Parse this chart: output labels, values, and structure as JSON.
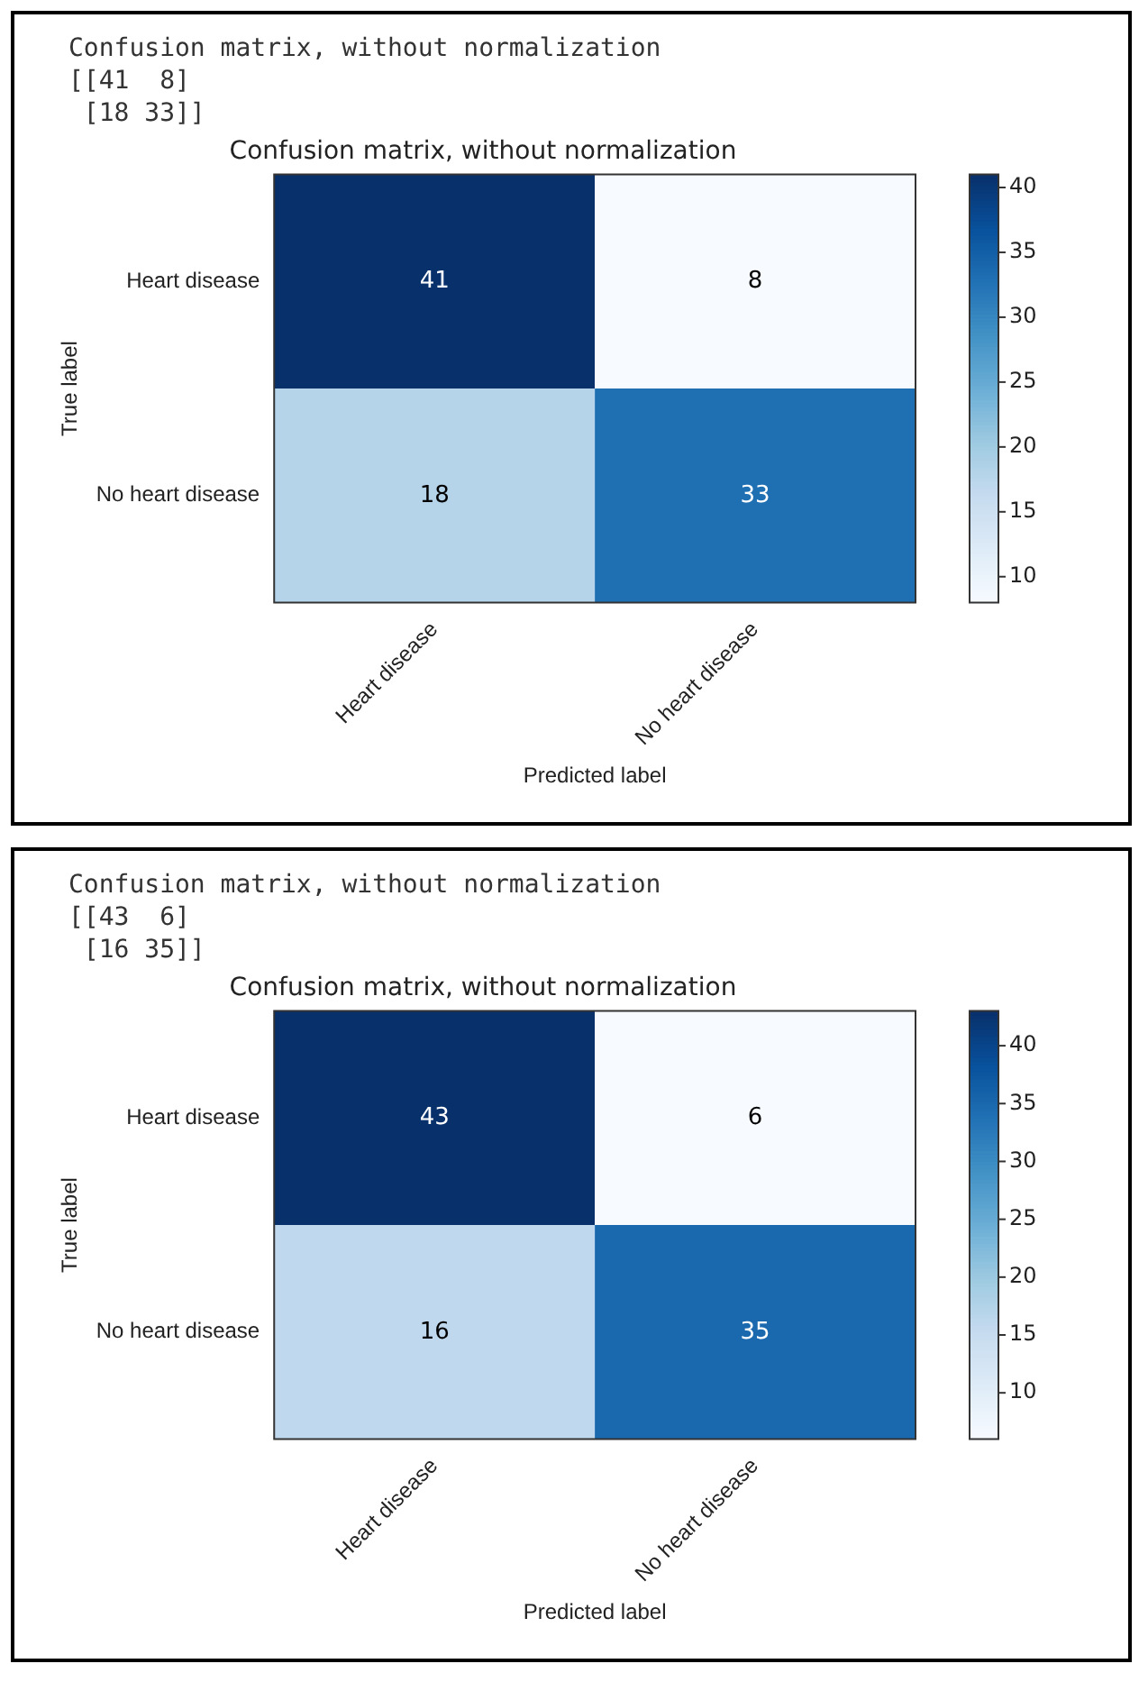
{
  "chart_data": [
    {
      "type": "heatmap",
      "title": "Confusion matrix, without normalization",
      "xlabel": "Predicted label",
      "ylabel": "True label",
      "categories": [
        "Heart disease",
        "No heart disease"
      ],
      "y_categories": [
        "Heart disease",
        "No heart disease"
      ],
      "cells": [
        [
          41,
          8
        ],
        [
          18,
          33
        ]
      ],
      "data_labels": true,
      "clim": [
        8,
        41
      ],
      "cticks": [
        10,
        15,
        20,
        25,
        30,
        35,
        40
      ],
      "annotations": [
        "Confusion matrix, without normalization",
        "[[41  8]",
        " [18 33]]"
      ]
    },
    {
      "type": "heatmap",
      "title": "Confusion matrix, without normalization",
      "xlabel": "Predicted label",
      "ylabel": "True label",
      "categories": [
        "Heart disease",
        "No heart disease"
      ],
      "y_categories": [
        "Heart disease",
        "No heart disease"
      ],
      "cells": [
        [
          43,
          6
        ],
        [
          16,
          35
        ]
      ],
      "data_labels": true,
      "clim": [
        6,
        43
      ],
      "cticks": [
        10,
        15,
        20,
        25,
        30,
        35,
        40
      ],
      "annotations": [
        "Confusion matrix, without normalization",
        "[[43  6]",
        " [16 35]]"
      ]
    }
  ]
}
